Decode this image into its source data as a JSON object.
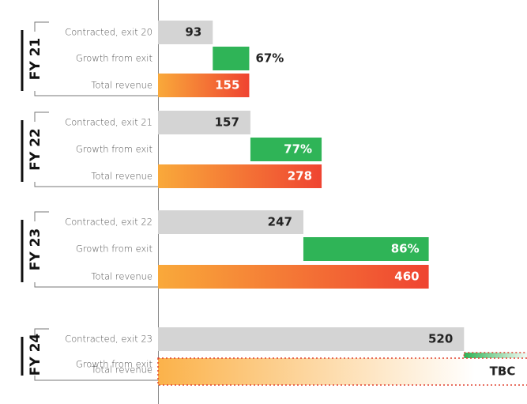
{
  "chart_data": {
    "type": "bar",
    "groups": [
      {
        "name": "FY 21",
        "categories": [
          "Contracted, exit 20",
          "Growth from exit",
          "Total revenue"
        ]
      },
      {
        "name": "FY 22",
        "categories": [
          "Contracted, exit 21",
          "Growth from exit",
          "Total revenue"
        ]
      },
      {
        "name": "FY 23",
        "categories": [
          "Contracted, exit 22",
          "Growth from exit",
          "Total revenue"
        ]
      },
      {
        "name": "FY 24",
        "categories": [
          "Contracted, exit 23",
          "Growth from exit",
          "Total revenue"
        ]
      }
    ],
    "contracted": {
      "color": "#d4d4d4",
      "values": [
        93,
        157,
        247,
        520
      ]
    },
    "growth": {
      "color": "#2fb457",
      "values": [
        67,
        77,
        86,
        null
      ],
      "value_labels": [
        "67%",
        "77%",
        "86%",
        null
      ]
    },
    "total": {
      "colors": [
        "#f9a93a",
        "#ef4431"
      ],
      "values": [
        155,
        278,
        460,
        null
      ],
      "value_labels": [
        null,
        null,
        null,
        "TBC"
      ]
    },
    "xlim": [
      0,
      627
    ]
  }
}
